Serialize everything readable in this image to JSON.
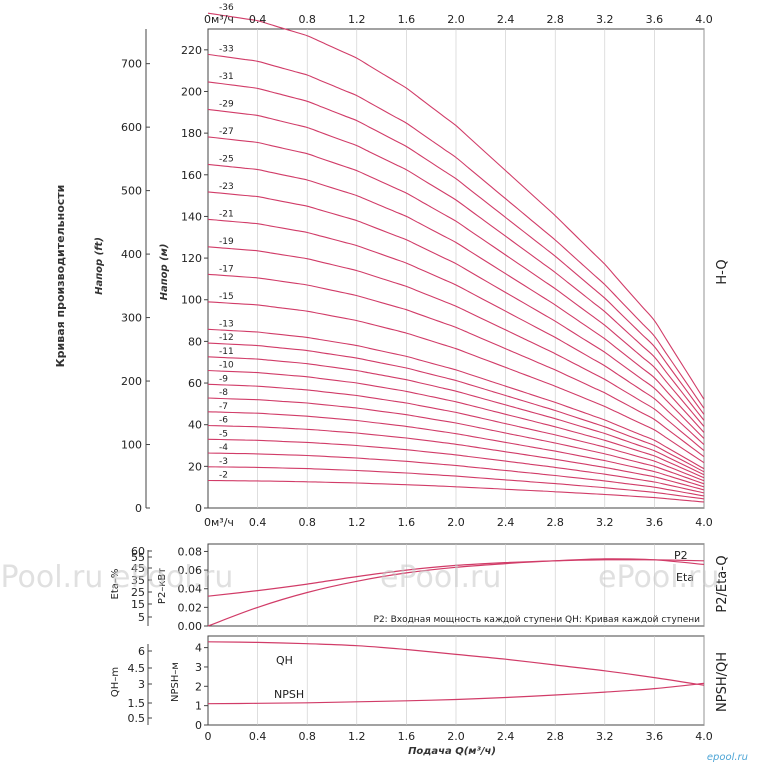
{
  "chart_data": [
    {
      "type": "line",
      "band_title": "H-Q",
      "side_title": "Кривая производительности",
      "ylabel_left": "Напор (ft)",
      "ylabel_right": "Напор (м)",
      "x_top_unit": "0м³/ч",
      "x_ticks": [
        "0.4",
        "0.8",
        "1.2",
        "1.6",
        "2.0",
        "2.4",
        "2.8",
        "3.2",
        "3.6",
        "4.0"
      ],
      "xlim": [
        0,
        4.0
      ],
      "ylim_m": [
        0,
        230
      ],
      "ylim_ft": [
        0,
        754.6
      ],
      "y_ticks_m": [
        "0",
        "20",
        "40",
        "60",
        "80",
        "100",
        "120",
        "140",
        "160",
        "180",
        "200",
        "220"
      ],
      "y_ticks_ft": [
        "0",
        "100",
        "200",
        "300",
        "400",
        "500",
        "600",
        "700"
      ],
      "per_stage_head_m": [
        [
          0,
          6.6
        ],
        [
          0.4,
          6.5
        ],
        [
          0.8,
          6.3
        ],
        [
          1.2,
          6.0
        ],
        [
          1.6,
          5.6
        ],
        [
          2.0,
          5.1
        ],
        [
          2.4,
          4.5
        ],
        [
          2.8,
          3.9
        ],
        [
          3.2,
          3.25
        ],
        [
          3.6,
          2.5
        ],
        [
          4.0,
          1.45
        ]
      ],
      "series": [
        {
          "name": "-2",
          "stages": 2
        },
        {
          "name": "-3",
          "stages": 3
        },
        {
          "name": "-4",
          "stages": 4
        },
        {
          "name": "-5",
          "stages": 5
        },
        {
          "name": "-6",
          "stages": 6
        },
        {
          "name": "-7",
          "stages": 7
        },
        {
          "name": "-8",
          "stages": 8
        },
        {
          "name": "-9",
          "stages": 9
        },
        {
          "name": "-10",
          "stages": 10
        },
        {
          "name": "-11",
          "stages": 11
        },
        {
          "name": "-12",
          "stages": 12
        },
        {
          "name": "-13",
          "stages": 13
        },
        {
          "name": "-15",
          "stages": 15
        },
        {
          "name": "-17",
          "stages": 17
        },
        {
          "name": "-19",
          "stages": 19
        },
        {
          "name": "-21",
          "stages": 21
        },
        {
          "name": "-23",
          "stages": 23
        },
        {
          "name": "-25",
          "stages": 25
        },
        {
          "name": "-27",
          "stages": 27
        },
        {
          "name": "-29",
          "stages": 29
        },
        {
          "name": "-31",
          "stages": 31
        },
        {
          "name": "-33",
          "stages": 33
        },
        {
          "name": "-36",
          "stages": 36
        }
      ]
    },
    {
      "type": "line",
      "band_title": "P2/Eta-Q",
      "ylabel_left": "Eta–%",
      "ylabel_right": "P2–кВт",
      "x_top_unit": "0м³/ч",
      "x_ticks": [
        "0.4",
        "0.8",
        "1.2",
        "1.6",
        "2.0",
        "2.4",
        "2.8",
        "3.2",
        "3.6",
        "4.0"
      ],
      "xlim": [
        0,
        4.0
      ],
      "y_ticks_p2": [
        "0.00",
        "0.02",
        "0.04",
        "0.06",
        "0.08"
      ],
      "y_ticks_eta": [
        "5",
        "15",
        "25",
        "35",
        "45",
        "55",
        "60"
      ],
      "ylim_p2": [
        0,
        0.088
      ],
      "note": "P2: Входная мощность каждой ступени QH: Кривая каждой ступени",
      "series": [
        {
          "name": "P2",
          "x": [
            0,
            0.4,
            0.8,
            1.2,
            1.6,
            2.0,
            2.4,
            2.8,
            3.2,
            3.6,
            4.0
          ],
          "y": [
            0.032,
            0.038,
            0.045,
            0.053,
            0.06,
            0.065,
            0.068,
            0.07,
            0.071,
            0.071,
            0.07
          ]
        },
        {
          "name": "Eta",
          "x": [
            0,
            0.4,
            0.8,
            1.2,
            1.6,
            2.0,
            2.4,
            2.8,
            3.2,
            3.6,
            4.0
          ],
          "y": [
            0.0,
            0.02,
            0.036,
            0.048,
            0.057,
            0.063,
            0.067,
            0.07,
            0.072,
            0.071,
            0.066
          ]
        }
      ]
    },
    {
      "type": "line",
      "band_title": "NPSH/QH",
      "ylabel_left": "QH–m",
      "ylabel_right": "NPSH–м",
      "xlabel": "Подача Q(м³/ч)",
      "x_ticks": [
        "0",
        "0.4",
        "0.8",
        "1.2",
        "1.6",
        "2.0",
        "2.4",
        "2.8",
        "3.2",
        "3.6",
        "4.0"
      ],
      "xlim": [
        0,
        4.0
      ],
      "ylim_npsh": [
        0,
        4.6
      ],
      "y_ticks_npsh": [
        "0",
        "1",
        "2",
        "3",
        "4"
      ],
      "y_ticks_qh": [
        "0.5",
        "1.5",
        "3",
        "4.5",
        "6"
      ],
      "series": [
        {
          "name": "QH",
          "x": [
            0,
            0.4,
            0.8,
            1.2,
            1.6,
            2.0,
            2.4,
            2.8,
            3.2,
            3.6,
            4.0
          ],
          "y": [
            4.3,
            4.27,
            4.2,
            4.1,
            3.9,
            3.65,
            3.4,
            3.1,
            2.8,
            2.45,
            2.05
          ]
        },
        {
          "name": "NPSH",
          "x": [
            0,
            0.4,
            0.8,
            1.2,
            1.6,
            2.0,
            2.4,
            2.8,
            3.2,
            3.6,
            4.0
          ],
          "y": [
            1.1,
            1.12,
            1.15,
            1.2,
            1.25,
            1.32,
            1.42,
            1.55,
            1.7,
            1.88,
            2.15
          ]
        }
      ]
    }
  ],
  "colors": {
    "curve": "#d13c68",
    "grid": "#c9c9c9",
    "axis": "#444444",
    "watermark": "#c8c8c8",
    "logo": "#4fa6d6"
  },
  "watermarks": [
    "ePool.ru",
    "ePool.ru",
    "ePool.ru",
    "ePool.ru"
  ],
  "logo": "epool.ru"
}
